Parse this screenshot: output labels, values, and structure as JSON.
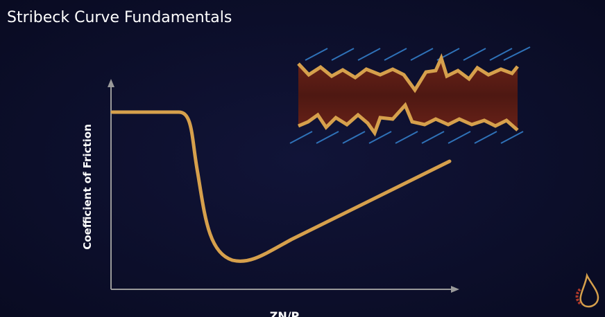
{
  "header": {
    "title": "Stribeck Curve Fundamentals"
  },
  "axes": {
    "y_label": "Coefficient of Friction",
    "x_label": "ZN/P"
  }
}
